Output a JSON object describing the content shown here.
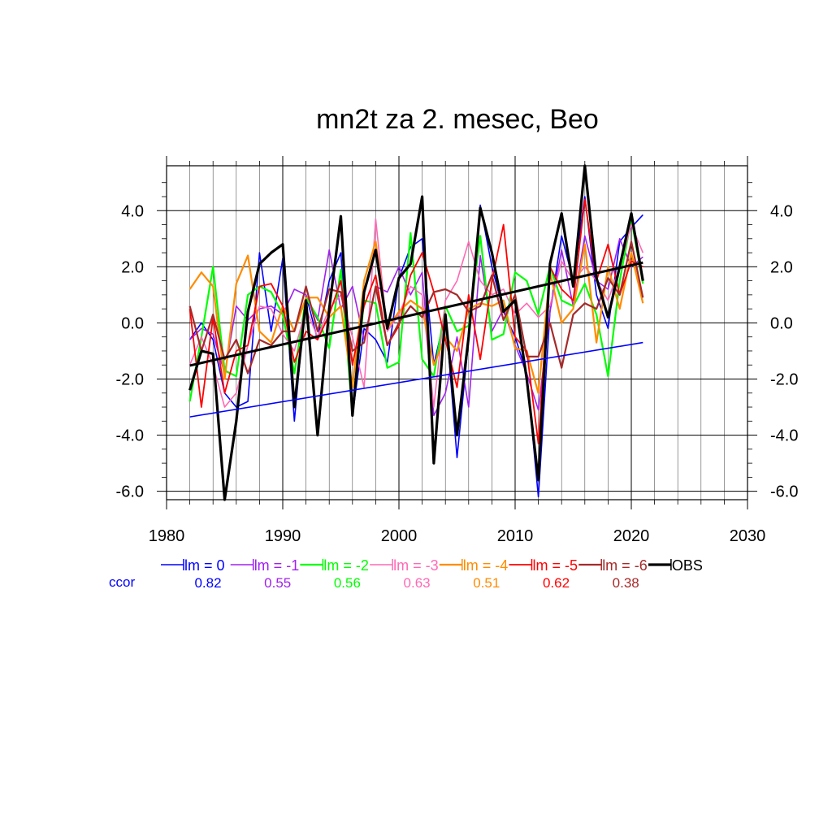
{
  "chart_data": {
    "type": "line",
    "title": "mn2t za 2. mesec, Beo",
    "xlabel": "",
    "ylabel": "",
    "xlim": [
      1980,
      2030
    ],
    "ylim": [
      -6.3,
      5.6
    ],
    "x_ticks": [
      1980,
      1990,
      2000,
      2010,
      2020,
      2030
    ],
    "y_ticks": [
      -6.0,
      -4.0,
      -2.0,
      0.0,
      2.0,
      4.0
    ],
    "x_tick_labels": [
      "1980",
      "1990",
      "2000",
      "2010",
      "2020",
      "2030"
    ],
    "y_tick_labels": [
      "-6.0",
      "-4.0",
      "-2.0",
      "0.0",
      "2.0",
      "4.0"
    ],
    "grid": true,
    "legend_position": "bottom",
    "ccor_label": "ccor",
    "x": [
      1982,
      1983,
      1984,
      1985,
      1986,
      1987,
      1988,
      1989,
      1990,
      1991,
      1992,
      1993,
      1994,
      1995,
      1996,
      1997,
      1998,
      1999,
      2000,
      2001,
      2002,
      2003,
      2004,
      2005,
      2006,
      2007,
      2008,
      2009,
      2010,
      2011,
      2012,
      2013,
      2014,
      2015,
      2016,
      2017,
      2018,
      2019,
      2020,
      2021
    ],
    "series": [
      {
        "name": "lm = 0",
        "color": "#0000ff",
        "ccor": "0.82",
        "width": 1.6,
        "values": [
          -0.6,
          0.0,
          -0.6,
          -2.5,
          -3.0,
          -2.8,
          2.5,
          -0.3,
          2.3,
          -3.5,
          1.0,
          -0.6,
          1.5,
          2.5,
          -3.3,
          -0.2,
          -0.6,
          -1.4,
          1.6,
          2.7,
          3.0,
          -1.5,
          0.3,
          -4.8,
          -0.6,
          4.2,
          2.0,
          0.4,
          -0.5,
          -1.8,
          -6.2,
          0.4,
          3.1,
          1.5,
          4.5,
          1.0,
          -0.2,
          2.9,
          3.4,
          3.85
        ]
      },
      {
        "name": "lm = -1",
        "color": "#a020f0",
        "ccor": "0.55",
        "width": 1.6,
        "values": [
          -0.6,
          -0.2,
          -0.4,
          -1.8,
          0.6,
          0.1,
          0.5,
          0.6,
          0.3,
          1.2,
          1.0,
          0.1,
          2.6,
          0.5,
          1.3,
          -0.6,
          1.3,
          1.1,
          2.0,
          1.0,
          1.8,
          -3.3,
          -2.5,
          -0.5,
          -3.0,
          2.4,
          -0.3,
          0.5,
          -0.8,
          -1.8,
          -3.1,
          0.4,
          2.6,
          0.6,
          3.1,
          1.5,
          1.2,
          3.0,
          2.0,
          2.35
        ]
      },
      {
        "name": "lm = -2",
        "color": "#00ff00",
        "ccor": "0.56",
        "width": 2.2,
        "values": [
          -2.8,
          -0.5,
          2.0,
          -1.7,
          -1.9,
          1.0,
          1.3,
          1.1,
          0.3,
          -1.8,
          0.9,
          0.2,
          -0.9,
          1.9,
          -3.3,
          0.8,
          0.7,
          -1.6,
          -1.4,
          3.2,
          -1.3,
          -1.9,
          0.6,
          -0.3,
          -0.1,
          3.1,
          -0.6,
          -0.4,
          1.8,
          1.5,
          0.3,
          2.0,
          0.8,
          0.6,
          1.4,
          0.3,
          -1.9,
          1.5,
          3.7,
          1.4
        ]
      },
      {
        "name": "lm = -3",
        "color": "#ff69b4",
        "ccor": "0.63",
        "width": 1.6,
        "values": [
          -1.5,
          -0.5,
          -1.5,
          -3.0,
          -2.5,
          -0.8,
          0.6,
          0.5,
          -0.4,
          -1.0,
          0.5,
          -0.5,
          0.5,
          1.0,
          -0.5,
          -2.3,
          3.7,
          -0.3,
          0.3,
          1.3,
          1.0,
          -3.0,
          0.8,
          1.5,
          2.9,
          1.5,
          1.0,
          1.2,
          0.3,
          0.7,
          0.2,
          0.6,
          2.2,
          1.5,
          2.0,
          1.5,
          0.8,
          2.0,
          3.5,
          2.5
        ]
      },
      {
        "name": "lm = -4",
        "color": "#ff8c00",
        "ccor": "0.51",
        "width": 2.2,
        "values": [
          1.2,
          1.8,
          1.3,
          -2.0,
          1.4,
          2.4,
          -0.3,
          -0.7,
          0.6,
          -0.3,
          0.9,
          0.9,
          0.2,
          0.6,
          -2.3,
          1.5,
          2.9,
          -0.2,
          0.4,
          0.8,
          0.5,
          -1.5,
          -0.5,
          -1.0,
          0.5,
          0.7,
          0.6,
          0.8,
          -0.9,
          -1.0,
          -2.5,
          1.8,
          0.0,
          0.5,
          2.8,
          -0.7,
          2.0,
          0.5,
          2.5,
          0.7
        ]
      },
      {
        "name": "lm = -5",
        "color": "#ff0000",
        "ccor": "0.62",
        "width": 1.8,
        "values": [
          0.5,
          -3.0,
          0.2,
          -2.5,
          -1.0,
          -0.8,
          1.3,
          1.4,
          0.6,
          -1.4,
          -0.3,
          -0.6,
          0.3,
          1.5,
          -1.5,
          0.6,
          1.7,
          -0.8,
          -0.1,
          1.7,
          2.5,
          1.1,
          -0.6,
          -2.3,
          1.0,
          -1.3,
          1.5,
          3.5,
          -0.5,
          -1.0,
          -4.3,
          2.0,
          1.2,
          0.8,
          4.4,
          1.5,
          2.8,
          1.0,
          2.2,
          2.0
        ]
      },
      {
        "name": "lm = -6",
        "color": "#a52a2a",
        "ccor": "0.38",
        "width": 2.2,
        "values": [
          0.6,
          -1.0,
          0.3,
          -1.3,
          -0.6,
          -1.8,
          -0.6,
          -0.8,
          -0.3,
          -0.3,
          1.3,
          -0.3,
          1.2,
          1.1,
          -1.0,
          -0.7,
          1.3,
          -0.8,
          0.0,
          0.6,
          0.2,
          1.1,
          1.2,
          1.0,
          0.4,
          0.6,
          1.7,
          0.1,
          1.0,
          -1.2,
          -1.2,
          0.0,
          -1.6,
          0.3,
          0.7,
          0.5,
          1.6,
          1.0,
          2.9,
          0.9
        ]
      },
      {
        "name": "OBS",
        "color": "#000000",
        "ccor": "",
        "width": 3.2,
        "values": [
          -2.4,
          -1.0,
          -1.1,
          -6.3,
          -3.5,
          0.4,
          2.1,
          2.5,
          2.8,
          -3.0,
          0.8,
          -4.0,
          0.5,
          3.8,
          -3.3,
          1.1,
          2.6,
          -0.2,
          1.6,
          2.1,
          4.5,
          -5.0,
          0.3,
          -4.0,
          -0.5,
          4.1,
          2.5,
          0.4,
          0.8,
          -2.0,
          -5.6,
          2.1,
          3.9,
          1.3,
          5.6,
          1.6,
          0.2,
          2.0,
          3.9,
          1.5
        ]
      }
    ],
    "trend_lines": [
      {
        "name": "OBS trend",
        "color": "#000000",
        "width": 3,
        "x": [
          1982,
          2021
        ],
        "y": [
          -1.52,
          2.15
        ]
      },
      {
        "name": "lm = 0 trend",
        "color": "#0000ff",
        "width": 1.6,
        "x": [
          1982,
          2021
        ],
        "y": [
          -3.35,
          -0.7
        ]
      }
    ]
  }
}
